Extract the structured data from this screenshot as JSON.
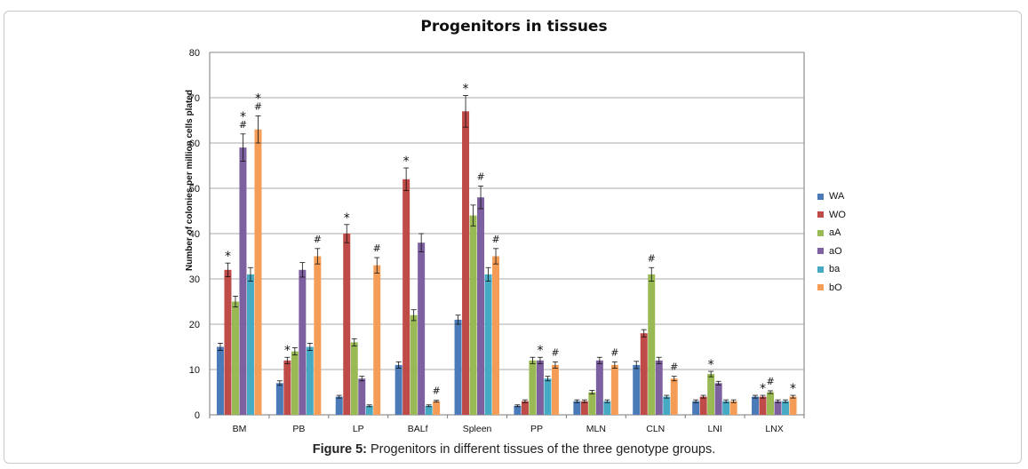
{
  "figure": {
    "title": "Progenitors in tissues",
    "caption_label": "Figure 5:",
    "caption_text": " Progenitors in different tissues of the three genotype groups."
  },
  "chart_data": {
    "type": "bar",
    "title": "Progenitors in tissues",
    "ylabel": "Number of colonies per million cells plated",
    "xlabel": "",
    "ylim": [
      0,
      80
    ],
    "yticks": [
      0,
      10,
      20,
      30,
      40,
      50,
      60,
      70,
      80
    ],
    "grid": true,
    "legend_position": "right",
    "categories": [
      "BM",
      "PB",
      "LP",
      "BALf",
      "Spleen",
      "PP",
      "MLN",
      "CLN",
      "LNI",
      "LNX"
    ],
    "series": [
      {
        "name": "WA",
        "color": "#4a7ab8",
        "values": [
          15,
          7,
          4,
          11,
          21,
          2,
          3,
          11,
          3,
          4
        ],
        "errors": [
          0.8,
          0.5,
          0.3,
          0.7,
          1.0,
          0.2,
          0.3,
          0.8,
          0.3,
          0.3
        ]
      },
      {
        "name": "WO",
        "color": "#be4b48",
        "values": [
          32,
          12,
          40,
          52,
          67,
          3,
          3,
          18,
          4,
          4
        ],
        "errors": [
          1.5,
          0.7,
          2.0,
          2.5,
          3.5,
          0.3,
          0.3,
          0.8,
          0.3,
          0.3
        ]
      },
      {
        "name": "aA",
        "color": "#98b954",
        "values": [
          25,
          14,
          16,
          22,
          44,
          12,
          5,
          31,
          9,
          5
        ],
        "errors": [
          1.2,
          0.8,
          0.8,
          1.2,
          2.3,
          0.7,
          0.4,
          1.5,
          0.6,
          0.3
        ]
      },
      {
        "name": "aO",
        "color": "#7d60a0",
        "values": [
          59,
          32,
          8,
          38,
          48,
          12,
          12,
          12,
          7,
          3
        ],
        "errors": [
          3.0,
          1.6,
          0.5,
          2.0,
          2.5,
          0.7,
          0.7,
          0.7,
          0.4,
          0.3
        ]
      },
      {
        "name": "ba",
        "color": "#46aac4",
        "values": [
          31,
          15,
          2,
          2,
          31,
          8,
          3,
          4,
          3,
          3
        ],
        "errors": [
          1.5,
          0.8,
          0.2,
          0.2,
          1.5,
          0.5,
          0.3,
          0.3,
          0.3,
          0.3
        ]
      },
      {
        "name": "bO",
        "color": "#f59d56",
        "values": [
          63,
          35,
          33,
          3,
          35,
          11,
          11,
          8,
          3,
          4
        ],
        "errors": [
          3.0,
          1.7,
          1.7,
          0.2,
          1.7,
          0.7,
          0.7,
          0.5,
          0.3,
          0.3
        ]
      }
    ],
    "annotations": [
      {
        "category": "BM",
        "series": "WO",
        "text": "*"
      },
      {
        "category": "BM",
        "series": "aO",
        "text": "*\n#"
      },
      {
        "category": "BM",
        "series": "bO",
        "text": "*\n#"
      },
      {
        "category": "PB",
        "series": "WO",
        "text": "*"
      },
      {
        "category": "PB",
        "series": "bO",
        "text": "#"
      },
      {
        "category": "LP",
        "series": "WO",
        "text": "*"
      },
      {
        "category": "LP",
        "series": "bO",
        "text": "#"
      },
      {
        "category": "BALf",
        "series": "WO",
        "text": "*"
      },
      {
        "category": "BALf",
        "series": "bO",
        "text": "#"
      },
      {
        "category": "Spleen",
        "series": "WO",
        "text": "*"
      },
      {
        "category": "Spleen",
        "series": "aO",
        "text": "#"
      },
      {
        "category": "Spleen",
        "series": "bO",
        "text": "#"
      },
      {
        "category": "PP",
        "series": "aO",
        "text": "*"
      },
      {
        "category": "PP",
        "series": "bO",
        "text": "#"
      },
      {
        "category": "MLN",
        "series": "bO",
        "text": "#"
      },
      {
        "category": "CLN",
        "series": "aA",
        "text": "#"
      },
      {
        "category": "CLN",
        "series": "bO",
        "text": "#"
      },
      {
        "category": "LNI",
        "series": "aA",
        "text": "*"
      },
      {
        "category": "LNX",
        "series": "WO",
        "text": "*"
      },
      {
        "category": "LNX",
        "series": "aA",
        "text": "#"
      },
      {
        "category": "LNX",
        "series": "bO",
        "text": "*"
      }
    ]
  }
}
